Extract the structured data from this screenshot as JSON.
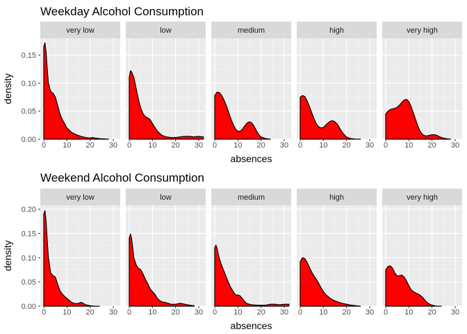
{
  "chart_data": [
    {
      "type": "area",
      "title": "Weekday Alcohol Consumption",
      "xlabel": "absences",
      "ylabel": "density",
      "ylim": [
        0,
        0.18
      ],
      "xlim": [
        -1.5,
        33
      ],
      "yticks": [
        0.0,
        0.05,
        0.1,
        0.15
      ],
      "ytick_labels": [
        "0.00",
        "0.05",
        "0.10",
        "0.15"
      ],
      "xticks": [
        0,
        10,
        20,
        30
      ],
      "xtick_labels": [
        "0",
        "10",
        "20",
        "30"
      ],
      "fill_color": "#ff0000",
      "panel_bg": "#ebebeb",
      "strip_bg": "#d9d9d9",
      "grid": true,
      "panels": [
        {
          "label": "very low",
          "x": [
            0,
            0.5,
            1,
            1.5,
            2,
            3,
            4,
            5,
            6,
            7,
            8,
            10,
            12,
            14,
            16,
            18,
            20,
            21,
            22,
            24,
            26,
            28
          ],
          "y": [
            0.165,
            0.172,
            0.155,
            0.125,
            0.1,
            0.085,
            0.082,
            0.075,
            0.06,
            0.045,
            0.035,
            0.02,
            0.012,
            0.008,
            0.005,
            0.003,
            0.002,
            0.003,
            0.002,
            0.001,
            0.0005,
            0.0
          ]
        },
        {
          "label": "low",
          "x": [
            0,
            0.5,
            1,
            2,
            3,
            4,
            5,
            6,
            7,
            8,
            9,
            10,
            12,
            14,
            16,
            18,
            20,
            22,
            24,
            26,
            28,
            30,
            32
          ],
          "y": [
            0.11,
            0.122,
            0.12,
            0.11,
            0.09,
            0.07,
            0.055,
            0.045,
            0.04,
            0.038,
            0.035,
            0.028,
            0.015,
            0.007,
            0.004,
            0.003,
            0.003,
            0.004,
            0.005,
            0.005,
            0.004,
            0.005,
            0.004
          ]
        },
        {
          "label": "medium",
          "x": [
            0,
            1,
            2,
            3,
            4,
            5,
            6,
            7,
            8,
            9,
            10,
            11,
            12,
            13,
            14,
            15,
            16,
            17,
            18,
            19,
            20,
            22,
            24
          ],
          "y": [
            0.078,
            0.084,
            0.083,
            0.078,
            0.07,
            0.06,
            0.048,
            0.036,
            0.026,
            0.018,
            0.014,
            0.014,
            0.018,
            0.024,
            0.029,
            0.031,
            0.029,
            0.023,
            0.015,
            0.008,
            0.004,
            0.001,
            0.0
          ]
        },
        {
          "label": "high",
          "x": [
            0,
            1,
            2,
            3,
            4,
            5,
            6,
            7,
            8,
            9,
            10,
            11,
            12,
            13,
            14,
            15,
            16,
            17,
            18,
            19,
            20,
            21,
            22,
            24,
            26
          ],
          "y": [
            0.075,
            0.078,
            0.076,
            0.068,
            0.058,
            0.047,
            0.036,
            0.027,
            0.022,
            0.02,
            0.021,
            0.025,
            0.029,
            0.032,
            0.033,
            0.031,
            0.027,
            0.02,
            0.013,
            0.008,
            0.004,
            0.002,
            0.001,
            0.0,
            0.0
          ]
        },
        {
          "label": "very high",
          "x": [
            0,
            1,
            2,
            3,
            4,
            5,
            6,
            7,
            8,
            9,
            10,
            11,
            12,
            13,
            14,
            15,
            16,
            17,
            18,
            19,
            20,
            21,
            22,
            24,
            26,
            28
          ],
          "y": [
            0.045,
            0.05,
            0.053,
            0.054,
            0.055,
            0.057,
            0.061,
            0.066,
            0.07,
            0.071,
            0.067,
            0.058,
            0.046,
            0.034,
            0.022,
            0.013,
            0.008,
            0.006,
            0.006,
            0.007,
            0.008,
            0.008,
            0.007,
            0.003,
            0.001,
            0.0
          ]
        }
      ]
    },
    {
      "type": "area",
      "title": "Weekend Alcohol Consumption",
      "xlabel": "absences",
      "ylabel": "density",
      "ylim": [
        0,
        0.208
      ],
      "xlim": [
        -1.5,
        33
      ],
      "yticks": [
        0.0,
        0.05,
        0.1,
        0.15,
        0.2
      ],
      "ytick_labels": [
        "0.00",
        "0.05",
        "0.10",
        "0.15",
        "0.20"
      ],
      "xticks": [
        0,
        10,
        20,
        30
      ],
      "xtick_labels": [
        "0",
        "10",
        "20",
        "30"
      ],
      "fill_color": "#ff0000",
      "panel_bg": "#ebebeb",
      "strip_bg": "#d9d9d9",
      "grid": true,
      "panels": [
        {
          "label": "very low",
          "x": [
            0,
            0.5,
            1,
            1.5,
            2,
            3,
            4,
            5,
            6,
            7,
            8,
            9,
            10,
            11,
            12,
            13,
            14,
            15,
            16,
            17,
            18,
            20,
            22,
            24
          ],
          "y": [
            0.19,
            0.197,
            0.175,
            0.135,
            0.1,
            0.068,
            0.063,
            0.06,
            0.045,
            0.032,
            0.025,
            0.02,
            0.016,
            0.012,
            0.008,
            0.006,
            0.005,
            0.006,
            0.008,
            0.006,
            0.003,
            0.001,
            0.0,
            0.0
          ]
        },
        {
          "label": "low",
          "x": [
            0,
            0.5,
            1,
            1.5,
            2,
            3,
            4,
            5,
            6,
            7,
            8,
            9,
            10,
            11,
            12,
            13,
            14,
            16,
            18,
            20,
            22,
            24,
            26,
            28
          ],
          "y": [
            0.14,
            0.149,
            0.14,
            0.12,
            0.1,
            0.085,
            0.078,
            0.075,
            0.066,
            0.055,
            0.046,
            0.036,
            0.03,
            0.025,
            0.017,
            0.012,
            0.009,
            0.007,
            0.004,
            0.004,
            0.006,
            0.004,
            0.002,
            0.001
          ]
        },
        {
          "label": "medium",
          "x": [
            0,
            0.5,
            1,
            1.5,
            2,
            3,
            4,
            5,
            6,
            7,
            8,
            9,
            10,
            11,
            12,
            13,
            14,
            16,
            18,
            20,
            22,
            24,
            26,
            28,
            30,
            32
          ],
          "y": [
            0.12,
            0.126,
            0.12,
            0.108,
            0.098,
            0.084,
            0.072,
            0.06,
            0.048,
            0.038,
            0.03,
            0.023,
            0.023,
            0.021,
            0.015,
            0.009,
            0.005,
            0.003,
            0.002,
            0.002,
            0.002,
            0.004,
            0.004,
            0.003,
            0.004,
            0.004
          ]
        },
        {
          "label": "high",
          "x": [
            0,
            1,
            2,
            3,
            4,
            5,
            6,
            7,
            8,
            9,
            10,
            11,
            12,
            13,
            14,
            15,
            16,
            18,
            20,
            22,
            24,
            26
          ],
          "y": [
            0.092,
            0.1,
            0.098,
            0.09,
            0.08,
            0.07,
            0.062,
            0.055,
            0.047,
            0.038,
            0.03,
            0.024,
            0.02,
            0.016,
            0.013,
            0.011,
            0.009,
            0.006,
            0.004,
            0.002,
            0.001,
            0.0
          ]
        },
        {
          "label": "very high",
          "x": [
            0,
            1,
            2,
            3,
            4,
            5,
            6,
            7,
            8,
            9,
            10,
            11,
            12,
            13,
            14,
            15,
            16,
            17,
            18,
            19,
            20,
            22,
            24
          ],
          "y": [
            0.075,
            0.082,
            0.083,
            0.078,
            0.068,
            0.062,
            0.063,
            0.064,
            0.06,
            0.052,
            0.042,
            0.034,
            0.03,
            0.027,
            0.025,
            0.022,
            0.018,
            0.012,
            0.007,
            0.004,
            0.002,
            0.0,
            0.0
          ]
        }
      ]
    }
  ]
}
